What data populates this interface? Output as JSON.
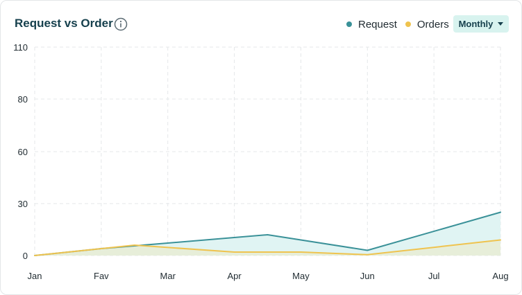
{
  "header": {
    "title": "Request vs Order",
    "info_icon": "info-circle-icon"
  },
  "legend": [
    {
      "label": "Request",
      "color": "#3a9198"
    },
    {
      "label": "Orders",
      "color": "#efc34e"
    }
  ],
  "period_select": {
    "value": "Monthly",
    "icon": "caret-down-icon"
  },
  "chart_data": {
    "type": "area",
    "title": "Request vs Order",
    "categories": [
      "Jan",
      "Fav",
      "Mar",
      "Apr",
      "May",
      "Jun",
      "Jul",
      "Aug"
    ],
    "y_ticks": [
      0,
      30,
      60,
      80,
      110
    ],
    "ylim": [
      0,
      110
    ],
    "grid": true,
    "legend_position": "top-right",
    "series": [
      {
        "name": "Request",
        "color": "#3a9198",
        "fill": "#e0f4f3",
        "points": [
          {
            "x": "Jan",
            "y": 0
          },
          {
            "x": "Fav",
            "y": 4
          },
          {
            "x": "Apr-May",
            "y": 12
          },
          {
            "x": "Jun",
            "y": 3
          },
          {
            "x": "Aug",
            "y": 25
          }
        ]
      },
      {
        "name": "Orders",
        "color": "#efc34e",
        "fill": "#e8ecd4",
        "points": [
          {
            "x": "Jan",
            "y": 0
          },
          {
            "x": "Fav-Mar",
            "y": 6
          },
          {
            "x": "Apr",
            "y": 2
          },
          {
            "x": "May",
            "y": 2
          },
          {
            "x": "Jun",
            "y": 0.5
          },
          {
            "x": "Aug",
            "y": 9
          }
        ]
      }
    ]
  }
}
